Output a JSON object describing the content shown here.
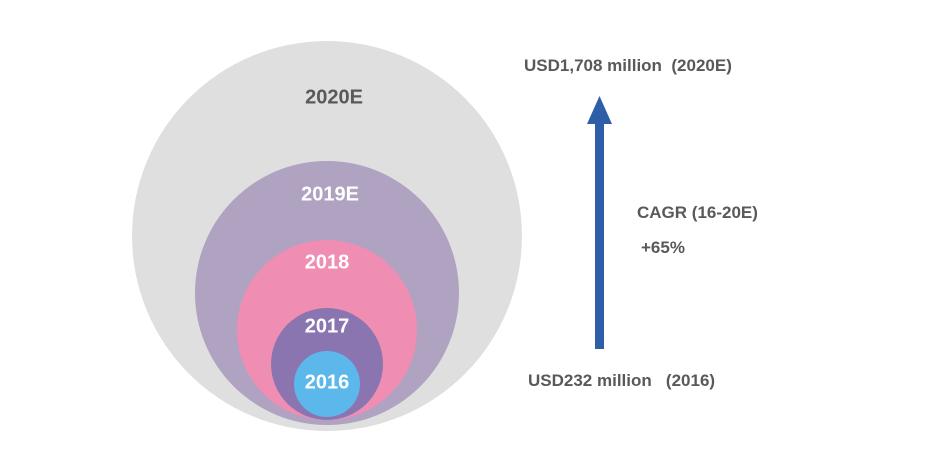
{
  "circles": [
    {
      "label": "2020E",
      "fill": "#dfdfdf",
      "text_color": "#595959"
    },
    {
      "label": "2019E",
      "fill": "#b0a2c1",
      "text_color": "#ffffff"
    },
    {
      "label": "2018",
      "fill": "#f08db2",
      "text_color": "#ffffff"
    },
    {
      "label": "2017",
      "fill": "#8a75b1",
      "text_color": "#ffffff"
    },
    {
      "label": "2016",
      "fill": "#5cb7ea",
      "text_color": "#ffffff"
    }
  ],
  "growth": {
    "top_value": "USD1,708 million  (2020E)",
    "cagr_label": "CAGR (16-20E)",
    "cagr_value": "+65%",
    "bottom_value": "USD232 million   (2016)",
    "arrow_color": "#2e5ea8"
  }
}
